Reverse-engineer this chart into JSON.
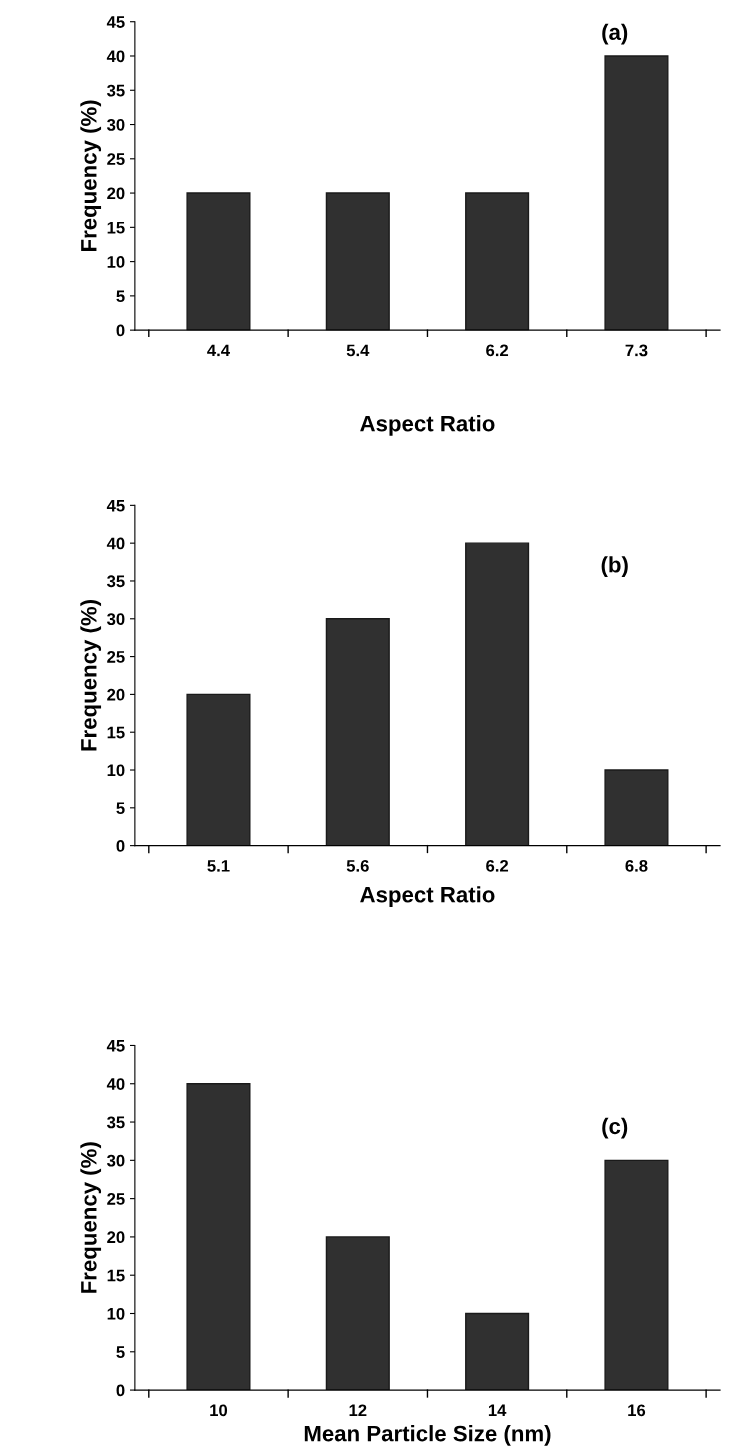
{
  "chart_data": [
    {
      "type": "bar",
      "categories": [
        "4.4",
        "5.4",
        "6.2",
        "7.3"
      ],
      "values": [
        20,
        20,
        20,
        40
      ],
      "color": "#303030",
      "xlabel": "Aspect Ratio",
      "ylabel": "Frequency (%)",
      "ylim": [
        0,
        45
      ],
      "yticks": [
        0,
        5,
        10,
        15,
        20,
        25,
        30,
        35,
        40,
        45
      ],
      "annotations": [
        "(a)"
      ]
    },
    {
      "type": "bar",
      "categories": [
        "5.1",
        "5.6",
        "6.2",
        "6.8"
      ],
      "values": [
        20,
        30,
        40,
        10
      ],
      "color": "#303030",
      "xlabel": "Aspect Ratio",
      "ylabel": "Frequency (%)",
      "ylim": [
        0,
        45
      ],
      "yticks": [
        0,
        5,
        10,
        15,
        20,
        25,
        30,
        35,
        40,
        45
      ],
      "annotations": [
        "(b)"
      ]
    },
    {
      "type": "bar",
      "categories": [
        "10",
        "12",
        "14",
        "16"
      ],
      "values": [
        40,
        20,
        10,
        30
      ],
      "color": "#303030",
      "xlabel": "Mean Particle Size (nm)",
      "ylabel": "Frequency (%)",
      "ylim": [
        0,
        45
      ],
      "yticks": [
        0,
        5,
        10,
        15,
        20,
        25,
        30,
        35,
        40,
        45
      ],
      "annotations": [
        "(c)"
      ]
    }
  ]
}
